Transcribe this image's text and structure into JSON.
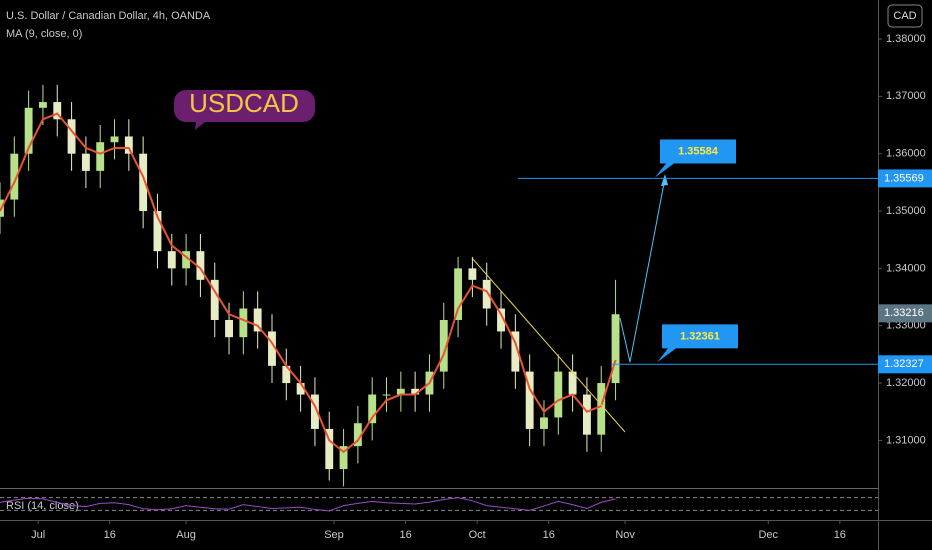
{
  "chart_data": {
    "type": "candlestick",
    "title": "U.S. Dollar / Canadian Dollar, 4h, OANDA",
    "indicator_label": "MA (9, close, 0)",
    "symbol": "USDCAD",
    "currency": "CAD",
    "x": [
      "06-23",
      "06-26",
      "06-29",
      "07-02",
      "07-05",
      "07-08",
      "07-11",
      "07-14",
      "07-17",
      "07-20",
      "07-23",
      "07-26",
      "07-29",
      "08-01",
      "08-04",
      "08-07",
      "08-10",
      "08-13",
      "08-16",
      "08-19",
      "08-22",
      "08-25",
      "08-28",
      "08-31",
      "09-03",
      "09-06",
      "09-09",
      "09-12",
      "09-15",
      "09-18",
      "09-21",
      "09-24",
      "09-27",
      "09-30",
      "10-03",
      "10-06",
      "10-09",
      "10-12",
      "10-15",
      "10-18",
      "10-21",
      "10-24",
      "10-27",
      "10-30"
    ],
    "open": [
      1.349,
      1.352,
      1.36,
      1.368,
      1.369,
      1.366,
      1.36,
      1.357,
      1.362,
      1.363,
      1.36,
      1.35,
      1.343,
      1.34,
      1.343,
      1.338,
      1.331,
      1.328,
      1.333,
      1.329,
      1.323,
      1.32,
      1.318,
      1.312,
      1.305,
      1.309,
      1.313,
      1.318,
      1.318,
      1.319,
      1.318,
      1.322,
      1.331,
      1.34,
      1.338,
      1.333,
      1.329,
      1.322,
      1.312,
      1.314,
      1.322,
      1.318,
      1.311,
      1.32
    ],
    "high": [
      1.355,
      1.363,
      1.371,
      1.372,
      1.372,
      1.369,
      1.363,
      1.365,
      1.366,
      1.366,
      1.363,
      1.353,
      1.346,
      1.346,
      1.346,
      1.341,
      1.334,
      1.336,
      1.336,
      1.332,
      1.326,
      1.323,
      1.321,
      1.315,
      1.312,
      1.316,
      1.321,
      1.321,
      1.322,
      1.322,
      1.325,
      1.334,
      1.342,
      1.342,
      1.341,
      1.336,
      1.332,
      1.325,
      1.317,
      1.325,
      1.325,
      1.321,
      1.323,
      1.338
    ],
    "low": [
      1.346,
      1.349,
      1.357,
      1.365,
      1.363,
      1.357,
      1.354,
      1.354,
      1.359,
      1.357,
      1.347,
      1.34,
      1.337,
      1.337,
      1.335,
      1.328,
      1.325,
      1.325,
      1.326,
      1.32,
      1.317,
      1.315,
      1.309,
      1.303,
      1.302,
      1.306,
      1.31,
      1.315,
      1.315,
      1.315,
      1.315,
      1.319,
      1.328,
      1.335,
      1.33,
      1.326,
      1.319,
      1.309,
      1.309,
      1.311,
      1.315,
      1.308,
      1.308,
      1.317
    ],
    "close": [
      1.352,
      1.36,
      1.368,
      1.369,
      1.366,
      1.36,
      1.357,
      1.362,
      1.363,
      1.36,
      1.35,
      1.343,
      1.34,
      1.343,
      1.338,
      1.331,
      1.328,
      1.333,
      1.329,
      1.323,
      1.32,
      1.318,
      1.312,
      1.305,
      1.309,
      1.313,
      1.318,
      1.318,
      1.319,
      1.318,
      1.322,
      1.331,
      1.34,
      1.338,
      1.333,
      1.329,
      1.322,
      1.312,
      1.314,
      1.322,
      1.318,
      1.311,
      1.32,
      1.332
    ],
    "ma": [
      1.35,
      1.355,
      1.361,
      1.366,
      1.367,
      1.364,
      1.361,
      1.36,
      1.361,
      1.361,
      1.356,
      1.349,
      1.344,
      1.342,
      1.34,
      1.336,
      1.332,
      1.331,
      1.33,
      1.327,
      1.323,
      1.32,
      1.316,
      1.31,
      1.308,
      1.31,
      1.314,
      1.317,
      1.318,
      1.318,
      1.32,
      1.325,
      1.333,
      1.337,
      1.336,
      1.332,
      1.327,
      1.319,
      1.315,
      1.317,
      1.318,
      1.315,
      1.316,
      1.324
    ],
    "up_color": "#b8e08a",
    "down_color": "#e8ecc4",
    "ma_color": "#e8542f",
    "ylim": [
      1.3017,
      1.3868
    ],
    "yticks": [
      {
        "value": 1.31,
        "label": "1.31000"
      },
      {
        "value": 1.32,
        "label": "1.32000"
      },
      {
        "value": 1.33,
        "label": "1.33000"
      },
      {
        "value": 1.34,
        "label": "1.34000"
      },
      {
        "value": 1.35,
        "label": "1.35000"
      },
      {
        "value": 1.36,
        "label": "1.36000"
      },
      {
        "value": 1.37,
        "label": "1.37000"
      },
      {
        "value": 1.38,
        "label": "1.38000"
      }
    ],
    "xlim": [
      "06-23",
      "12-24"
    ],
    "xticks": [
      {
        "value": "07-01",
        "label": "Jul"
      },
      {
        "value": "07-16",
        "label": "16"
      },
      {
        "value": "08-01",
        "label": "Aug"
      },
      {
        "value": "09-01",
        "label": "Sep"
      },
      {
        "value": "09-16",
        "label": "16"
      },
      {
        "value": "10-01",
        "label": "Oct"
      },
      {
        "value": "10-16",
        "label": "16"
      },
      {
        "value": "11-01",
        "label": "Nov"
      },
      {
        "value": "12-01",
        "label": "Dec"
      },
      {
        "value": "12-16",
        "label": "16"
      }
    ],
    "levels": [
      1.35569,
      1.32327
    ],
    "callouts": [
      1.35584,
      1.32361
    ],
    "last_price": 1.33216,
    "rsi": {
      "label": "RSI (14, close)",
      "color": "#9c4dcc",
      "ylim": [
        0,
        100
      ],
      "bands": [
        70,
        30
      ],
      "values": [
        55,
        62,
        68,
        66,
        55,
        45,
        42,
        52,
        54,
        48,
        35,
        32,
        35,
        45,
        40,
        35,
        34,
        48,
        42,
        36,
        38,
        40,
        33,
        28,
        45,
        52,
        58,
        54,
        52,
        50,
        56,
        64,
        70,
        60,
        45,
        40,
        35,
        30,
        44,
        58,
        48,
        36,
        55,
        66
      ]
    }
  }
}
